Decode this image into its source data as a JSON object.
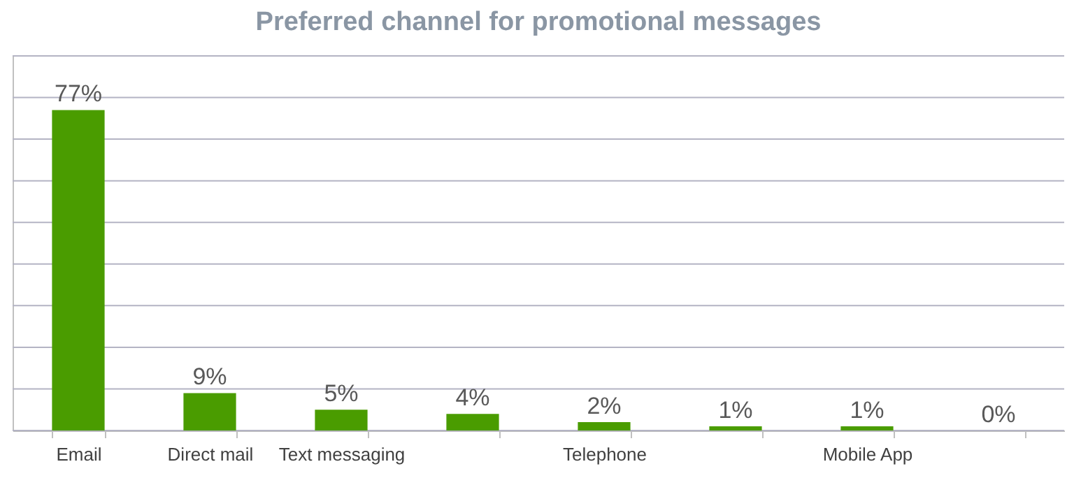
{
  "chart_data": {
    "type": "bar",
    "title": "Preferred  channel  for  promotional  messages",
    "categories": [
      "Email",
      "Direct mail",
      "Text messaging",
      null,
      "Telephone",
      null,
      "Mobile App",
      null
    ],
    "values": [
      77,
      9,
      5,
      4,
      2,
      1,
      1,
      0
    ],
    "value_labels": [
      "77%",
      "9%",
      "5%",
      "4%",
      "2%",
      "1%",
      "1%",
      "0%"
    ],
    "color": "#4a9c00",
    "ylim": [
      0,
      90
    ],
    "yticks": [
      {
        "value": 0,
        "label": null
      },
      {
        "value": 10,
        "label": null
      },
      {
        "value": 20,
        "label": null
      },
      {
        "value": 30,
        "label": null
      },
      {
        "value": 40,
        "label": null
      },
      {
        "value": 50,
        "label": null
      },
      {
        "value": 60,
        "label": null
      },
      {
        "value": 70,
        "label": null
      },
      {
        "value": 80,
        "label": null
      },
      {
        "value": 90,
        "label": null
      }
    ],
    "tick_labels": "x",
    "grid": "y"
  }
}
